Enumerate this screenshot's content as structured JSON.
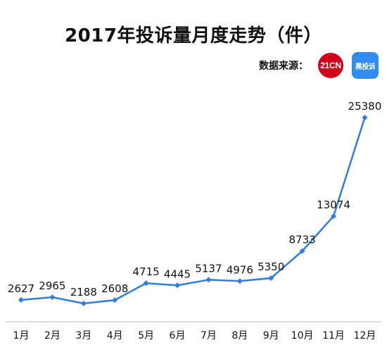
{
  "title": "2017年投诉量月度走势（件）",
  "source": {
    "label": "数据来源：",
    "logos": [
      {
        "text": "21CN",
        "icon": "21cn-logo",
        "color": "#d0021b"
      },
      {
        "text": "黑投诉",
        "icon": "heipo-complaint-logo",
        "color": "#2f8cf0"
      }
    ]
  },
  "colors": {
    "line": "#2f7de1",
    "axis": "#bbbbbb",
    "text": "#111111"
  },
  "chart_data": {
    "type": "line",
    "title": "2017年投诉量月度走势（件）",
    "categories": [
      "1月",
      "2月",
      "3月",
      "4月",
      "5月",
      "6月",
      "7月",
      "8月",
      "9月",
      "10月",
      "11月",
      "12月"
    ],
    "series": [
      {
        "values": [
          2627,
          2965,
          2188,
          2608,
          4715,
          4445,
          5137,
          4976,
          5350,
          8733,
          13074,
          25380
        ]
      }
    ],
    "data_labels": true,
    "ylim": [
      0,
      27000
    ],
    "grid": false,
    "legend": "none"
  }
}
